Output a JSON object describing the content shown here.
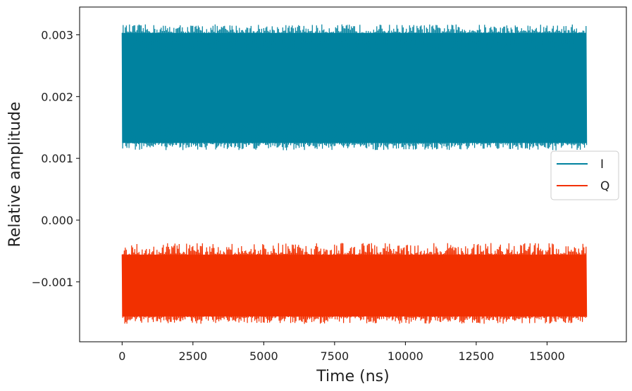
{
  "chart_data": {
    "type": "line",
    "xlabel": "Time (ns)",
    "ylabel": "Relative amplitude",
    "xlim": [
      -1500,
      17800
    ],
    "ylim": [
      -0.00197,
      0.00345
    ],
    "x_ticks": [
      0,
      2500,
      5000,
      7500,
      10000,
      12500,
      15000
    ],
    "x_tick_labels": [
      "0",
      "2500",
      "5000",
      "7500",
      "10000",
      "12500",
      "15000"
    ],
    "y_ticks": [
      -0.001,
      0.0,
      0.001,
      0.002,
      0.003
    ],
    "y_tick_labels": [
      "−0.001",
      "0.000",
      "0.001",
      "0.002",
      "0.003"
    ],
    "grid": false,
    "legend_position": "center-right",
    "series": [
      {
        "name": "I",
        "color": "#00829f",
        "x_range": [
          0,
          16383
        ],
        "center": 0.00214,
        "amplitude_band": [
          0.00113,
          0.00317
        ],
        "dense_band": [
          0.00125,
          0.00303
        ]
      },
      {
        "name": "Q",
        "color": "#f23000",
        "x_range": [
          0,
          16383
        ],
        "center": -0.00105,
        "amplitude_band": [
          -0.00168,
          -0.00037
        ],
        "dense_band": [
          -0.00156,
          -0.00056
        ]
      }
    ]
  }
}
